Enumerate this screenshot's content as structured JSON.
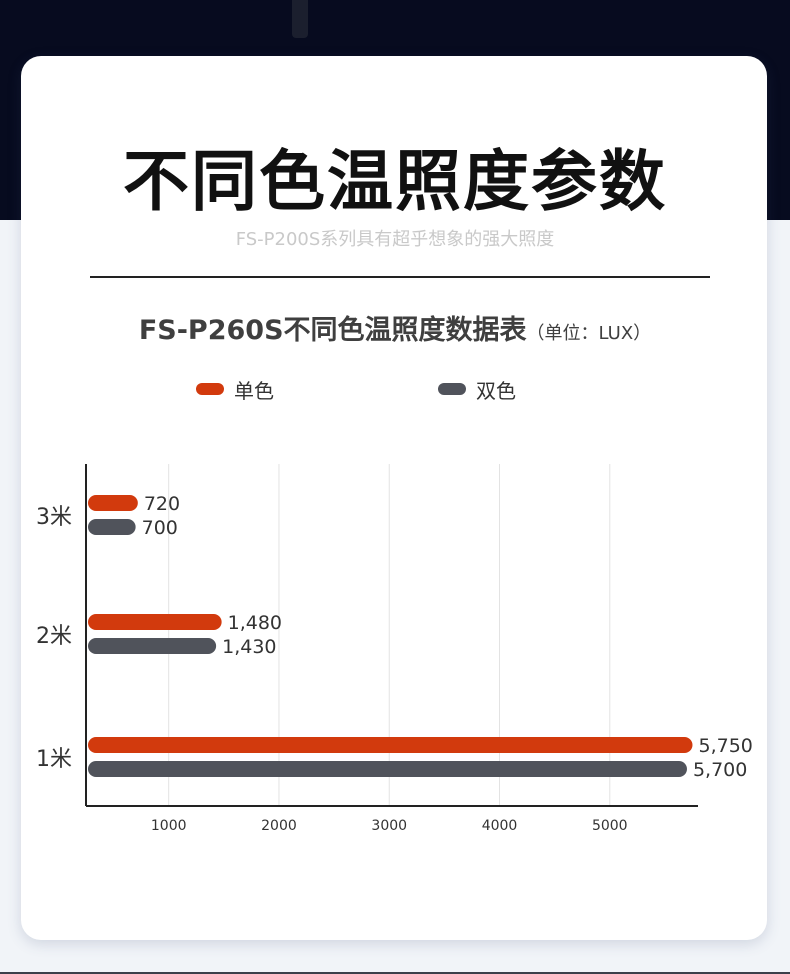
{
  "title": "不同色温照度参数",
  "subtitle": "FS-P200S系列具有超乎想象的强大照度",
  "chart_data": {
    "type": "bar",
    "orientation": "horizontal",
    "title": "FS-P260S不同色温照度数据表",
    "unit_note": "（单位：LUX）",
    "categories": [
      "3米",
      "2米",
      "1米"
    ],
    "series": [
      {
        "name": "单色",
        "color": "#d23a0d",
        "values": [
          720,
          1480,
          5750
        ],
        "labels": [
          "720",
          "1,480",
          "5,750"
        ]
      },
      {
        "name": "双色",
        "color": "#50535b",
        "values": [
          700,
          1430,
          5700
        ],
        "labels": [
          "700",
          "1,430",
          "5,700"
        ]
      }
    ],
    "x_ticks": [
      1000,
      2000,
      3000,
      4000,
      5000
    ],
    "xlim": [
      250,
      5800
    ],
    "grid": true,
    "legend_position": "top"
  }
}
